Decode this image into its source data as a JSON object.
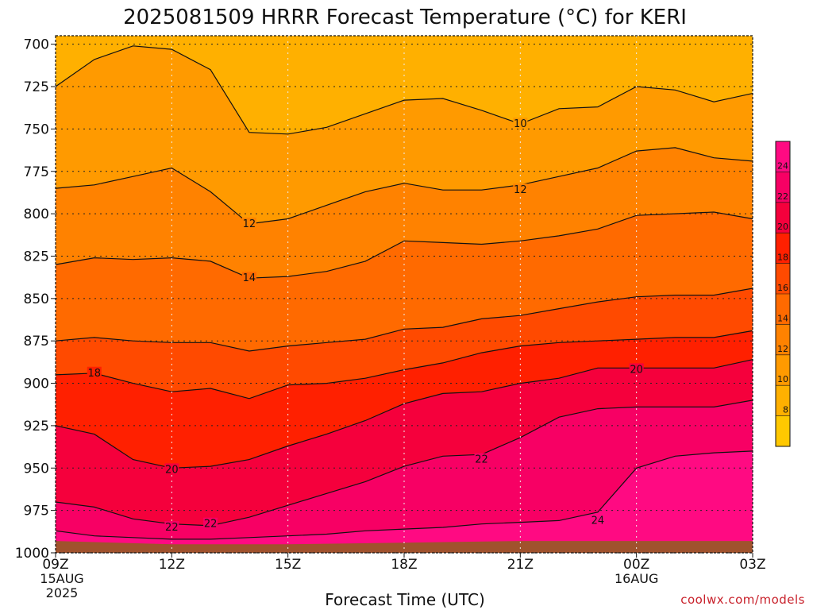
{
  "chart_data": {
    "type": "contour",
    "title": "2025081509 HRRR Forecast Temperature (°C) for KERI",
    "xlabel": "Forecast Time (UTC)",
    "ylabel": "",
    "credit": "coolwx.com/models",
    "x_ticks": [
      {
        "label": "09Z",
        "sub": [
          "15AUG",
          "2025"
        ],
        "hour": 0
      },
      {
        "label": "12Z",
        "sub": [],
        "hour": 3
      },
      {
        "label": "15Z",
        "sub": [],
        "hour": 6
      },
      {
        "label": "18Z",
        "sub": [],
        "hour": 9
      },
      {
        "label": "21Z",
        "sub": [],
        "hour": 12
      },
      {
        "label": "00Z",
        "sub": [
          "16AUG"
        ],
        "hour": 15
      },
      {
        "label": "03Z",
        "sub": [],
        "hour": 18
      }
    ],
    "xlim": [
      0,
      18
    ],
    "ylim": [
      1000,
      695
    ],
    "y_ticks": [
      "700",
      "725",
      "750",
      "775",
      "800",
      "825",
      "850",
      "875",
      "900",
      "925",
      "950",
      "975",
      "1000"
    ],
    "colorbar": {
      "ticks": [
        "8",
        "10",
        "12",
        "14",
        "16",
        "18",
        "20",
        "22",
        "24"
      ],
      "bands": [
        {
          "lo": 6,
          "hi": 8,
          "color": "#ffc800"
        },
        {
          "lo": 8,
          "hi": 10,
          "color": "#ffb000"
        },
        {
          "lo": 10,
          "hi": 12,
          "color": "#ff9a00"
        },
        {
          "lo": 12,
          "hi": 14,
          "color": "#ff8200"
        },
        {
          "lo": 14,
          "hi": 16,
          "color": "#ff6a00"
        },
        {
          "lo": 16,
          "hi": 18,
          "color": "#ff4a00"
        },
        {
          "lo": 18,
          "hi": 20,
          "color": "#ff2000"
        },
        {
          "lo": 20,
          "hi": 22,
          "color": "#f5003c"
        },
        {
          "lo": 22,
          "hi": 24,
          "color": "#f70064"
        },
        {
          "lo": 24,
          "hi": 26,
          "color": "#ff0a82"
        }
      ]
    },
    "ground_color": "#a0522d",
    "contour_labels": [
      {
        "text": "10",
        "hour": 12.0,
        "p": 747
      },
      {
        "text": "12",
        "hour": 12.0,
        "p": 786
      },
      {
        "text": "12",
        "hour": 5.0,
        "p": 806
      },
      {
        "text": "14",
        "hour": 5.0,
        "p": 838
      },
      {
        "text": "18",
        "hour": 1.0,
        "p": 894
      },
      {
        "text": "20",
        "hour": 15.0,
        "p": 892
      },
      {
        "text": "20",
        "hour": 3.0,
        "p": 951
      },
      {
        "text": "22",
        "hour": 11.0,
        "p": 945
      },
      {
        "text": "22",
        "hour": 4.0,
        "p": 983
      },
      {
        "text": "22",
        "hour": 3.0,
        "p": 985
      },
      {
        "text": "24",
        "hour": 14.0,
        "p": 981
      }
    ],
    "series": [
      {
        "name": "",
        "level": 10,
        "x": [
          0,
          1,
          2,
          3,
          4,
          5,
          6,
          7,
          8,
          9,
          10,
          11,
          12,
          13,
          14,
          15,
          16,
          17,
          18
        ],
        "p": [
          725,
          709,
          701,
          703,
          715,
          752,
          753,
          749,
          741,
          733,
          732,
          739,
          747,
          738,
          737,
          725,
          727,
          734,
          729
        ]
      },
      {
        "name": "",
        "level": 12,
        "x": [
          0,
          1,
          2,
          3,
          4,
          5,
          6,
          7,
          8,
          9,
          10,
          11,
          12,
          13,
          14,
          15,
          16,
          17,
          18
        ],
        "p": [
          785,
          783,
          778,
          773,
          787,
          806,
          803,
          795,
          787,
          782,
          786,
          786,
          783,
          778,
          773,
          763,
          761,
          767,
          769
        ]
      },
      {
        "name": "",
        "level": 14,
        "x": [
          0,
          1,
          2,
          3,
          4,
          5,
          6,
          7,
          8,
          9,
          10,
          11,
          12,
          13,
          14,
          15,
          16,
          17,
          18
        ],
        "p": [
          830,
          826,
          827,
          826,
          828,
          838,
          837,
          834,
          828,
          816,
          817,
          818,
          816,
          813,
          809,
          801,
          800,
          799,
          803
        ]
      },
      {
        "name": "",
        "level": 16,
        "x": [
          0,
          1,
          2,
          3,
          4,
          5,
          6,
          7,
          8,
          9,
          10,
          11,
          12,
          13,
          14,
          15,
          16,
          17,
          18
        ],
        "p": [
          875,
          873,
          875,
          876,
          876,
          881,
          878,
          876,
          874,
          868,
          867,
          862,
          860,
          856,
          852,
          849,
          848,
          848,
          844
        ]
      },
      {
        "name": "",
        "level": 18,
        "x": [
          0,
          1,
          2,
          3,
          4,
          5,
          6,
          7,
          8,
          9,
          10,
          11,
          12,
          13,
          14,
          15,
          16,
          17,
          18
        ],
        "p": [
          895,
          894,
          900,
          905,
          903,
          909,
          901,
          900,
          897,
          892,
          888,
          882,
          878,
          876,
          875,
          874,
          873,
          873,
          869
        ]
      },
      {
        "name": "",
        "level": 20,
        "x": [
          0,
          1,
          2,
          3,
          4,
          5,
          6,
          7,
          8,
          9,
          10,
          11,
          12,
          13,
          14,
          15,
          16,
          17,
          18
        ],
        "p": [
          925,
          930,
          945,
          950,
          949,
          945,
          937,
          930,
          922,
          912,
          906,
          905,
          900,
          897,
          891,
          891,
          891,
          891,
          886
        ]
      },
      {
        "name": "",
        "level": 22,
        "x": [
          0,
          1,
          2,
          3,
          4,
          5,
          6,
          7,
          8,
          9,
          10,
          11,
          12,
          13,
          14,
          15,
          16,
          17,
          18
        ],
        "p": [
          970,
          973,
          980,
          983,
          984,
          979,
          972,
          965,
          958,
          949,
          943,
          942,
          932,
          920,
          915,
          914,
          914,
          914,
          910
        ]
      },
      {
        "name": "",
        "level": 24,
        "x": [
          0,
          1,
          2,
          3,
          4,
          5,
          6,
          7,
          8,
          9,
          10,
          11,
          12,
          13,
          14,
          15,
          16,
          17,
          18
        ],
        "p": [
          987,
          990,
          991,
          992,
          992,
          991,
          990,
          989,
          987,
          986,
          985,
          983,
          982,
          981,
          976,
          950,
          943,
          941,
          940
        ]
      }
    ]
  }
}
